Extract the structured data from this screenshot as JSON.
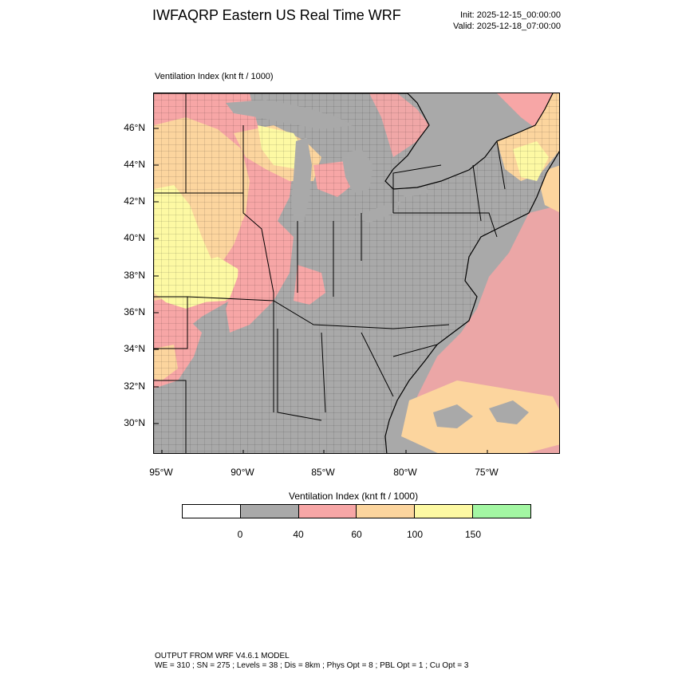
{
  "header": {
    "title": "IWFAQRP Eastern US Real Time WRF",
    "init": "Init: 2025-12-15_00:00:00",
    "valid": "Valid: 2025-12-18_07:00:00"
  },
  "map": {
    "subtitle": "Ventilation Index   (knt ft / 1000)",
    "lat_labels": [
      "46°N",
      "44°N",
      "42°N",
      "40°N",
      "38°N",
      "36°N",
      "34°N",
      "32°N",
      "30°N"
    ],
    "lon_labels": [
      "95°W",
      "90°W",
      "85°W",
      "80°W",
      "75°W"
    ],
    "colors": {
      "bin_0_40": "#a9a9a9",
      "bin_40_60": "#f7a6a6",
      "bin_60_100": "#fcd59e",
      "bin_100_150": "#fdf9a3",
      "bin_150_plus": "#a3f7a3",
      "lines": "#000000"
    }
  },
  "legend": {
    "title": "Ventilation Index  (knt ft / 1000)",
    "ticks": [
      "0",
      "40",
      "60",
      "100",
      "150"
    ],
    "colors": [
      "#ffffff",
      "#a9a9a9",
      "#f7a6a6",
      "#fcd59e",
      "#fdf9a3",
      "#a3f7a3"
    ]
  },
  "footer": {
    "line1": "OUTPUT FROM WRF V4.6.1 MODEL",
    "line2": "WE = 310 ; SN = 275 ; Levels = 38 ; Dis = 8km ; Phys Opt = 8 ; PBL Opt = 1 ; Cu Opt = 3"
  }
}
